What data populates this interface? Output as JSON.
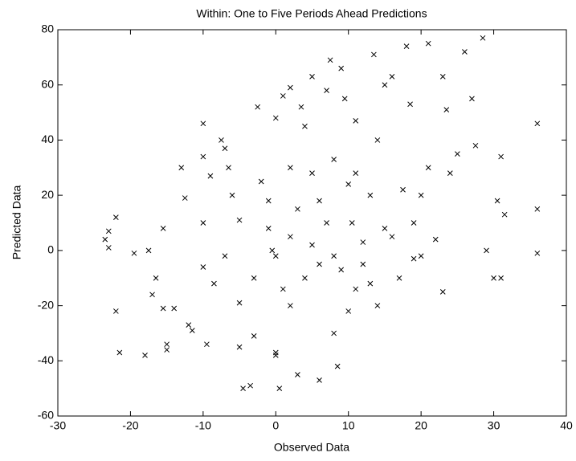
{
  "chart_data": {
    "type": "scatter",
    "title": "Within: One to Five Periods Ahead Predictions",
    "x_label": "Observed Data",
    "y_label": "Predicted Data",
    "color": "#000000",
    "marker": "x",
    "grid": false,
    "xlim": [
      -30,
      40
    ],
    "xticks": [
      -30,
      -20,
      -10,
      0,
      10,
      20,
      30,
      40
    ],
    "ylim": [
      -60,
      80
    ],
    "yticks": [
      -60,
      -40,
      -20,
      0,
      20,
      40,
      60,
      80
    ],
    "x": [
      -23.5,
      -23,
      -23,
      -22,
      -22,
      -21.5,
      -19.5,
      -18,
      -17.5,
      -17,
      -16.5,
      -15.5,
      -15.5,
      -15,
      -15,
      -14,
      -13,
      -12.5,
      -12,
      -11.5,
      -10,
      -10,
      -10,
      -10,
      -9.5,
      -9,
      -8.5,
      -7.5,
      -7,
      -6.5,
      -6,
      -5,
      -5,
      -5,
      -4.5,
      -3.5,
      -3,
      -2.5,
      -2,
      -1,
      -0.5,
      0,
      0,
      0,
      0.5,
      1,
      1,
      2,
      2,
      2,
      3,
      3.5,
      4,
      5,
      5,
      6,
      6,
      7,
      7.5,
      8,
      8,
      8.5,
      9,
      9.5,
      10,
      10,
      10.5,
      11,
      11,
      12,
      13,
      13.5,
      14,
      15,
      15,
      16,
      17,
      17.5,
      18,
      18.5,
      19,
      20,
      20,
      21,
      21,
      22,
      23,
      23,
      23.5,
      24,
      25,
      26,
      27,
      27.5,
      28.5,
      29,
      30,
      30.5,
      31,
      31,
      31.5,
      36,
      36,
      36,
      12,
      5,
      3,
      7,
      9,
      0,
      4,
      14,
      -7,
      2,
      6,
      16,
      19,
      11,
      -3,
      8,
      13,
      -1
    ],
    "values": [
      4,
      7,
      1,
      12,
      -22,
      -37,
      -1,
      -38,
      0,
      -16,
      -10,
      8,
      -21,
      -34,
      -36,
      -21,
      30,
      19,
      -27,
      -29,
      46,
      34,
      10,
      -6,
      -34,
      27,
      -12,
      40,
      37,
      30,
      20,
      11,
      -19,
      -35,
      -50,
      -49,
      -31,
      52,
      25,
      8,
      0,
      48,
      -38,
      -37,
      -50,
      56,
      -14,
      59,
      30,
      5,
      -45,
      52,
      45,
      63,
      28,
      -5,
      -47,
      58,
      69,
      33,
      -30,
      -42,
      66,
      55,
      24,
      -22,
      10,
      47,
      -14,
      -5,
      20,
      71,
      40,
      60,
      8,
      63,
      -10,
      22,
      74,
      53,
      10,
      20,
      -2,
      75,
      30,
      4,
      63,
      -15,
      51,
      28,
      35,
      72,
      55,
      38,
      77,
      0,
      -10,
      18,
      -10,
      34,
      13,
      46,
      15,
      -1,
      3,
      2,
      15,
      10,
      -7,
      -2,
      -10,
      -20,
      -2,
      -20,
      18,
      5,
      -3,
      28,
      -10,
      -2,
      -12,
      18
    ]
  }
}
